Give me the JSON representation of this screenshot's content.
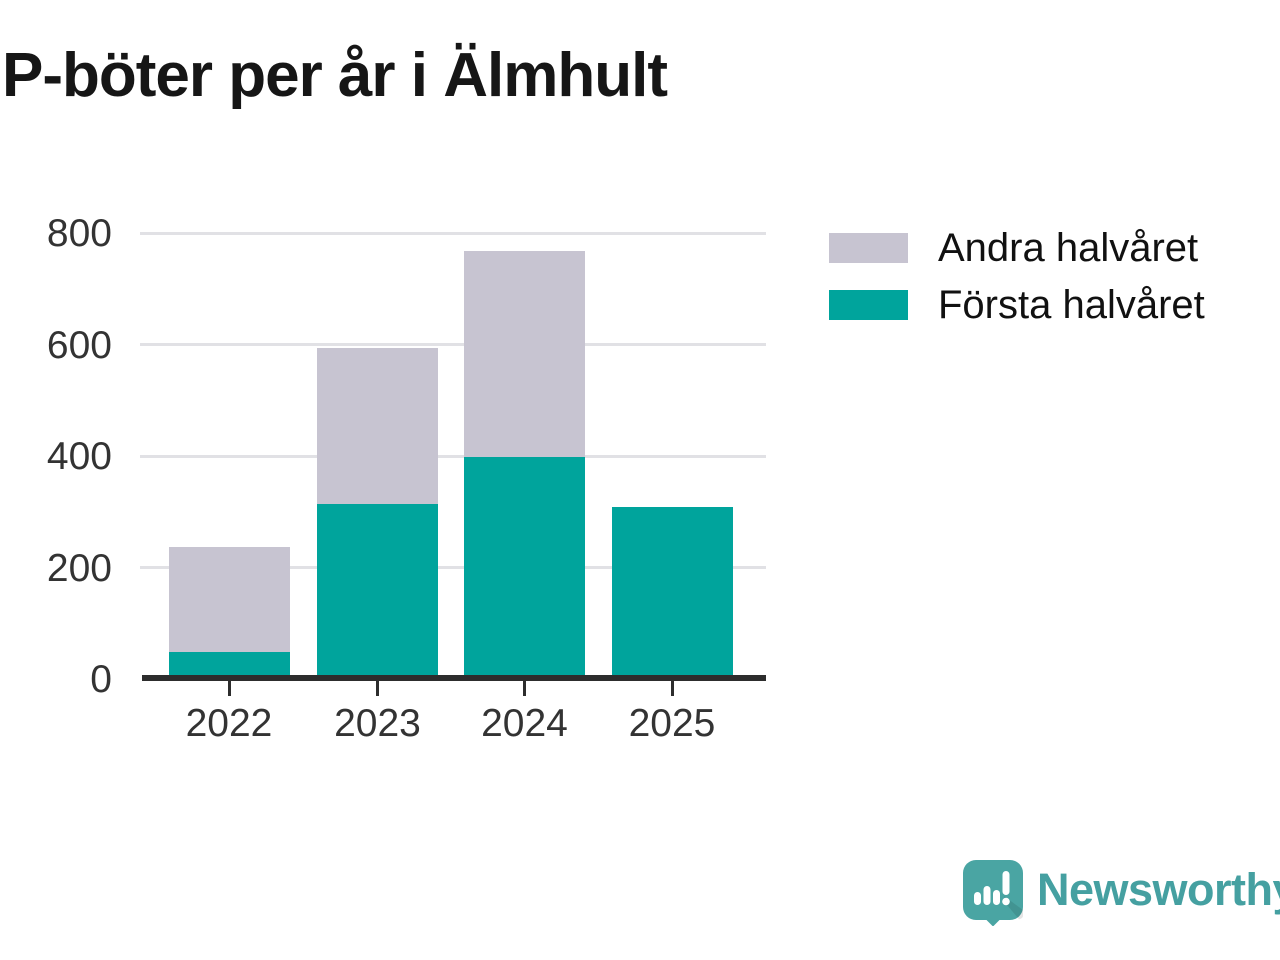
{
  "title": "P-böter per år i Älmhult",
  "chart_data": {
    "type": "bar",
    "stacked": true,
    "title": "P-böter per år i Älmhult",
    "categories": [
      "2022",
      "2023",
      "2024",
      "2025"
    ],
    "series": [
      {
        "name": "Första halvåret",
        "color": "#00a49c",
        "values": [
          45,
          310,
          395,
          305
        ]
      },
      {
        "name": "Andra halvåret",
        "color": "#c7c4d1",
        "values": [
          188,
          280,
          370,
          0
        ]
      }
    ],
    "totals": [
      233,
      590,
      765,
      305
    ],
    "xlabel": "",
    "ylabel": "",
    "ylim": [
      0,
      800
    ],
    "yticks": [
      0,
      200,
      400,
      600,
      800
    ],
    "grid": true,
    "legend_position": "top-right",
    "legend_order": [
      "Andra halvåret",
      "Första halvåret"
    ]
  },
  "colors": {
    "first_half": "#00a49c",
    "second_half": "#c7c4d1",
    "axis_line": "#2d2d2d",
    "gridline": "#e1e1e5",
    "tick_text": "#333333",
    "title_text": "#161616",
    "brand_teal": "#45a0a1"
  },
  "branding": {
    "name": "Newsworthy",
    "logo_icon": "bar-chart-speech-bubble-icon"
  }
}
